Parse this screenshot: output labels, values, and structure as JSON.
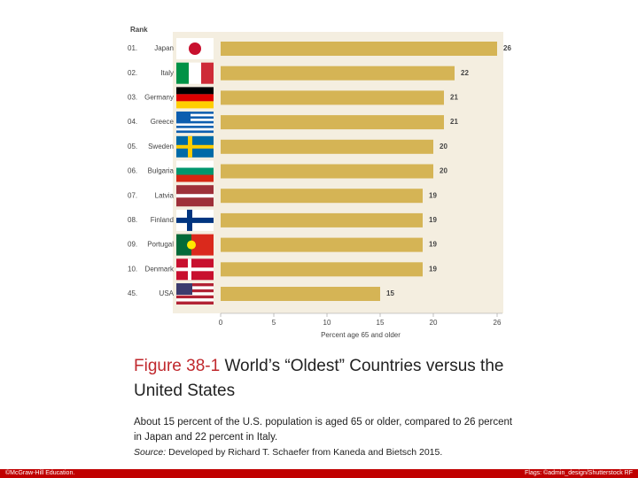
{
  "chart_data": {
    "type": "bar",
    "orientation": "horizontal",
    "rank_header": "Rank",
    "ranks": [
      "01.",
      "02.",
      "03.",
      "04.",
      "05.",
      "06.",
      "07.",
      "08.",
      "09.",
      "10.",
      "45."
    ],
    "categories": [
      "Japan",
      "Italy",
      "Germany",
      "Greece",
      "Sweden",
      "Bulgaria",
      "Latvia",
      "Finland",
      "Portugal",
      "Denmark",
      "USA"
    ],
    "values": [
      26,
      22,
      21,
      21,
      20,
      20,
      19,
      19,
      19,
      19,
      15
    ],
    "color": "#d5b455",
    "xlim": [
      0,
      26
    ],
    "xticks": [
      0,
      5,
      10,
      15,
      20,
      26
    ],
    "xlabel": "Percent age 65 and older"
  },
  "caption": {
    "figure": "Figure 38-1",
    "title": "World’s “Oldest” Countries versus the United States",
    "description": "About 15 percent of the U.S. population is aged 65 or older, compared to 26 percent in Japan and 22 percent in Italy.",
    "source_label": "Source:",
    "source": "Developed by Richard T. Schaefer from Kaneda and Bietsch 2015."
  },
  "footer": {
    "left": "©McGraw-Hill Education.",
    "right": "Flags: ©admin_design/Shutterstock RF"
  }
}
